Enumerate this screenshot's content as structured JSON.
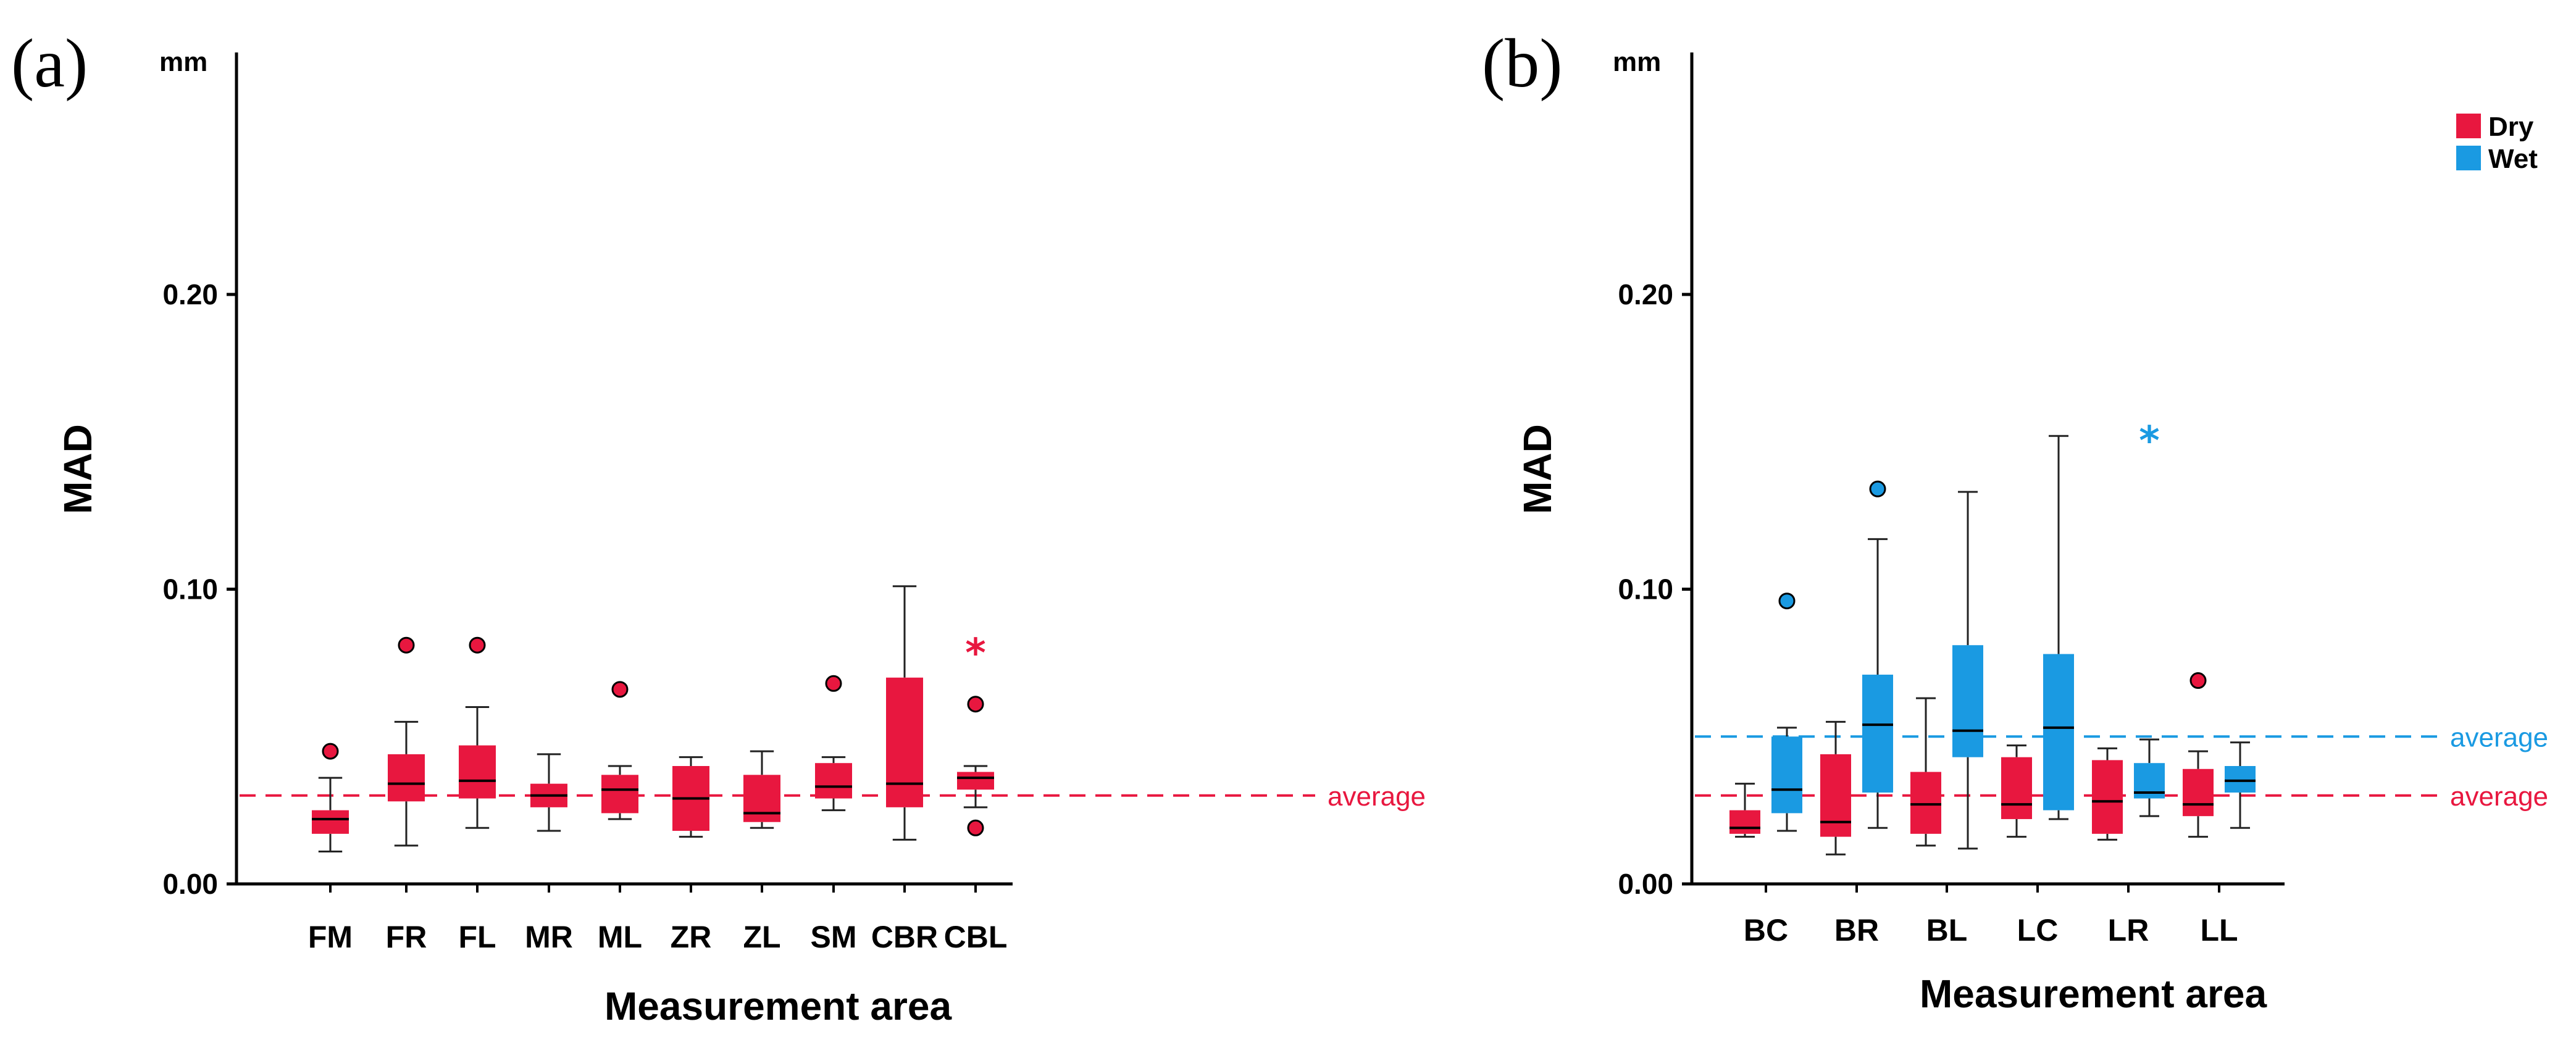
{
  "colors": {
    "dry": "#e8173f",
    "wet": "#1a9ae2",
    "axis": "#000000",
    "whisker": "#222222",
    "median": "#000000"
  },
  "chart_data": [
    {
      "type": "boxplot",
      "panel_label": "(a)",
      "unit": "mm",
      "ylabel": "MAD",
      "xlabel": "Measurement area",
      "ylim": [
        0,
        0.28
      ],
      "yticks": [
        0.0,
        0.1,
        0.2
      ],
      "ytick_labels": [
        "0.00",
        "0.10",
        "0.20"
      ],
      "categories": [
        "FM",
        "FR",
        "FL",
        "MR",
        "ML",
        "ZR",
        "ZL",
        "SM",
        "CBR",
        "CBL"
      ],
      "series": [
        {
          "name": "Dry",
          "color_key": "dry",
          "boxes": [
            {
              "cat": "FM",
              "min": 0.011,
              "q1": 0.017,
              "median": 0.022,
              "q3": 0.025,
              "max": 0.036,
              "outliers": [
                0.045
              ],
              "extremes": []
            },
            {
              "cat": "FR",
              "min": 0.013,
              "q1": 0.028,
              "median": 0.034,
              "q3": 0.044,
              "max": 0.055,
              "outliers": [
                0.081
              ],
              "extremes": []
            },
            {
              "cat": "FL",
              "min": 0.019,
              "q1": 0.029,
              "median": 0.035,
              "q3": 0.047,
              "max": 0.06,
              "outliers": [
                0.081
              ],
              "extremes": []
            },
            {
              "cat": "MR",
              "min": 0.018,
              "q1": 0.026,
              "median": 0.03,
              "q3": 0.034,
              "max": 0.044,
              "outliers": [],
              "extremes": []
            },
            {
              "cat": "ML",
              "min": 0.022,
              "q1": 0.024,
              "median": 0.032,
              "q3": 0.037,
              "max": 0.04,
              "outliers": [
                0.066
              ],
              "extremes": []
            },
            {
              "cat": "ZR",
              "min": 0.016,
              "q1": 0.018,
              "median": 0.029,
              "q3": 0.04,
              "max": 0.043,
              "outliers": [],
              "extremes": []
            },
            {
              "cat": "ZL",
              "min": 0.019,
              "q1": 0.021,
              "median": 0.024,
              "q3": 0.037,
              "max": 0.045,
              "outliers": [],
              "extremes": []
            },
            {
              "cat": "SM",
              "min": 0.025,
              "q1": 0.029,
              "median": 0.033,
              "q3": 0.041,
              "max": 0.043,
              "outliers": [
                0.068
              ],
              "extremes": []
            },
            {
              "cat": "CBR",
              "min": 0.015,
              "q1": 0.026,
              "median": 0.034,
              "q3": 0.07,
              "max": 0.101,
              "outliers": [],
              "extremes": []
            },
            {
              "cat": "CBL",
              "min": 0.026,
              "q1": 0.032,
              "median": 0.036,
              "q3": 0.038,
              "max": 0.04,
              "outliers": [
                0.061,
                0.019
              ],
              "extremes": [
                0.08
              ]
            }
          ]
        }
      ],
      "reference_lines": [
        {
          "label": "average",
          "value": 0.03,
          "color_key": "dry"
        }
      ]
    },
    {
      "type": "boxplot",
      "panel_label": "(b)",
      "unit": "mm",
      "ylabel": "MAD",
      "xlabel": "Measurement area",
      "ylim": [
        0,
        0.28
      ],
      "yticks": [
        0.0,
        0.1,
        0.2
      ],
      "ytick_labels": [
        "0.00",
        "0.10",
        "0.20"
      ],
      "categories": [
        "BC",
        "BR",
        "BL",
        "LC",
        "LR",
        "LL"
      ],
      "legend": {
        "position": "top-right",
        "entries": [
          {
            "label": "Dry",
            "color_key": "dry"
          },
          {
            "label": "Wet",
            "color_key": "wet"
          }
        ]
      },
      "series": [
        {
          "name": "Dry",
          "color_key": "dry",
          "boxes": [
            {
              "cat": "BC",
              "min": 0.016,
              "q1": 0.017,
              "median": 0.019,
              "q3": 0.025,
              "max": 0.034,
              "outliers": [],
              "extremes": []
            },
            {
              "cat": "BR",
              "min": 0.01,
              "q1": 0.016,
              "median": 0.021,
              "q3": 0.044,
              "max": 0.055,
              "outliers": [],
              "extremes": []
            },
            {
              "cat": "BL",
              "min": 0.013,
              "q1": 0.017,
              "median": 0.027,
              "q3": 0.038,
              "max": 0.063,
              "outliers": [],
              "extremes": []
            },
            {
              "cat": "LC",
              "min": 0.016,
              "q1": 0.022,
              "median": 0.027,
              "q3": 0.043,
              "max": 0.047,
              "outliers": [],
              "extremes": []
            },
            {
              "cat": "LR",
              "min": 0.015,
              "q1": 0.017,
              "median": 0.028,
              "q3": 0.042,
              "max": 0.046,
              "outliers": [],
              "extremes": []
            },
            {
              "cat": "LL",
              "min": 0.016,
              "q1": 0.023,
              "median": 0.027,
              "q3": 0.039,
              "max": 0.045,
              "outliers": [
                0.069
              ],
              "extremes": []
            }
          ]
        },
        {
          "name": "Wet",
          "color_key": "wet",
          "boxes": [
            {
              "cat": "BC",
              "min": 0.018,
              "q1": 0.024,
              "median": 0.032,
              "q3": 0.05,
              "max": 0.053,
              "outliers": [
                0.096
              ],
              "extremes": []
            },
            {
              "cat": "BR",
              "min": 0.019,
              "q1": 0.031,
              "median": 0.054,
              "q3": 0.071,
              "max": 0.117,
              "outliers": [
                0.134
              ],
              "extremes": []
            },
            {
              "cat": "BL",
              "min": 0.012,
              "q1": 0.043,
              "median": 0.052,
              "q3": 0.081,
              "max": 0.133,
              "outliers": [],
              "extremes": []
            },
            {
              "cat": "LC",
              "min": 0.022,
              "q1": 0.025,
              "median": 0.053,
              "q3": 0.078,
              "max": 0.152,
              "outliers": [],
              "extremes": []
            },
            {
              "cat": "LR",
              "min": 0.023,
              "q1": 0.029,
              "median": 0.031,
              "q3": 0.041,
              "max": 0.049,
              "outliers": [],
              "extremes": [
                0.152
              ]
            },
            {
              "cat": "LL",
              "min": 0.019,
              "q1": 0.031,
              "median": 0.035,
              "q3": 0.04,
              "max": 0.048,
              "outliers": [],
              "extremes": []
            }
          ]
        }
      ],
      "reference_lines": [
        {
          "label": "average",
          "value": 0.05,
          "color_key": "wet"
        },
        {
          "label": "average",
          "value": 0.03,
          "color_key": "dry"
        }
      ]
    }
  ]
}
